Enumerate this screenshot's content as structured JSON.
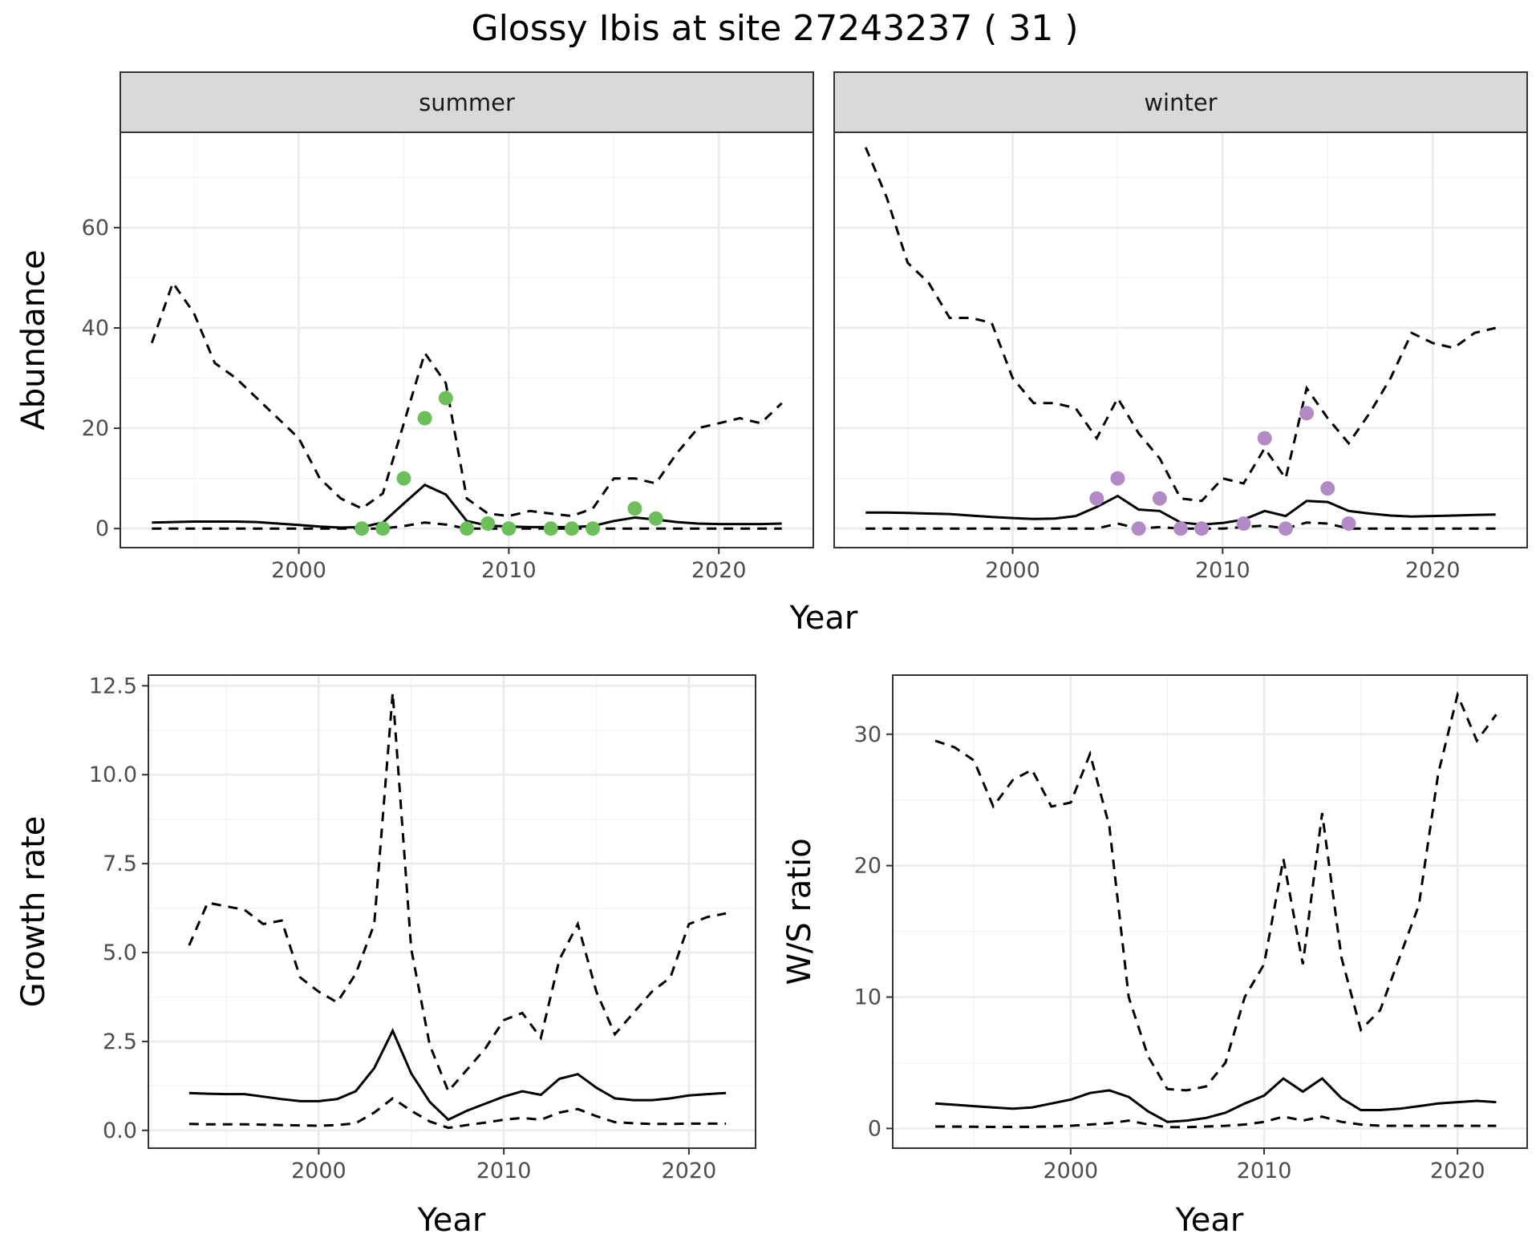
{
  "title": "Glossy Ibis at site 27243237 ( 31 )",
  "colors": {
    "summer_points": "#6dbf5b",
    "winter_points": "#b28bc6",
    "lines": "#000000"
  },
  "chart_data": [
    {
      "id": "abundance",
      "type": "line",
      "facets": [
        "summer",
        "winter"
      ],
      "xlabel": "Year",
      "ylabel": "Abundance",
      "xlim": [
        1991.5,
        2024.5
      ],
      "ylim": [
        -3.8,
        79
      ],
      "xticks": [
        "2000",
        "2010",
        "2020"
      ],
      "yticks": [
        "0",
        "20",
        "40",
        "60"
      ],
      "grid": true,
      "panels": [
        {
          "facet": "summer",
          "point_color": "#6dbf5b",
          "x": [
            1993,
            1994,
            1995,
            1996,
            1997,
            1998,
            1999,
            2000,
            2001,
            2002,
            2003,
            2004,
            2005,
            2006,
            2007,
            2008,
            2009,
            2010,
            2011,
            2012,
            2013,
            2014,
            2015,
            2016,
            2017,
            2018,
            2019,
            2020,
            2021,
            2022,
            2023
          ],
          "median": [
            1.2,
            1.3,
            1.4,
            1.4,
            1.4,
            1.3,
            1.0,
            0.7,
            0.4,
            0.2,
            0.3,
            1.2,
            5.0,
            8.7,
            6.8,
            1.5,
            0.6,
            0.4,
            0.3,
            0.3,
            0.3,
            0.5,
            1.5,
            2.2,
            1.8,
            1.3,
            1.0,
            0.9,
            0.9,
            0.9,
            1.0
          ],
          "upper": [
            37,
            49,
            43,
            33,
            30,
            26,
            22,
            18,
            10,
            6,
            4,
            7,
            21,
            35,
            29,
            6,
            3,
            2.5,
            3.5,
            3,
            2.5,
            4,
            10,
            10,
            9,
            15,
            20,
            21,
            22,
            21,
            25
          ],
          "lower": [
            0,
            0,
            0,
            0,
            0,
            0,
            0,
            0,
            0,
            0,
            0,
            0,
            0.5,
            1.2,
            0.8,
            0,
            0,
            0,
            0,
            0,
            0,
            0,
            0,
            0,
            0,
            0,
            0,
            0,
            0,
            0,
            0
          ],
          "points": [
            [
              2003,
              0
            ],
            [
              2004,
              0
            ],
            [
              2005,
              10
            ],
            [
              2006,
              22
            ],
            [
              2007,
              26
            ],
            [
              2008,
              0
            ],
            [
              2009,
              1
            ],
            [
              2010,
              0
            ],
            [
              2012,
              0
            ],
            [
              2013,
              0
            ],
            [
              2014,
              0
            ],
            [
              2016,
              4
            ],
            [
              2017,
              2
            ]
          ]
        },
        {
          "facet": "winter",
          "point_color": "#b28bc6",
          "x": [
            1993,
            1994,
            1995,
            1996,
            1997,
            1998,
            1999,
            2000,
            2001,
            2002,
            2003,
            2004,
            2005,
            2006,
            2007,
            2008,
            2009,
            2010,
            2011,
            2012,
            2013,
            2014,
            2015,
            2016,
            2017,
            2018,
            2019,
            2020,
            2021,
            2022,
            2023
          ],
          "median": [
            3.2,
            3.2,
            3.1,
            3.0,
            2.9,
            2.6,
            2.3,
            2.1,
            1.9,
            2.0,
            2.5,
            4.3,
            6.5,
            3.8,
            3.5,
            1.2,
            0.8,
            1.1,
            1.8,
            3.5,
            2.5,
            5.5,
            5.3,
            3.5,
            3.0,
            2.6,
            2.4,
            2.5,
            2.6,
            2.7,
            2.8
          ],
          "upper": [
            76,
            66,
            53,
            49,
            42,
            42,
            41,
            30,
            25,
            25,
            24,
            18,
            26,
            19,
            14,
            6,
            5.5,
            10,
            9,
            16,
            10,
            28,
            22,
            17,
            23,
            30,
            39,
            37,
            36,
            39,
            40
          ],
          "lower": [
            0,
            0,
            0,
            0,
            0,
            0,
            0,
            0,
            0,
            0,
            0,
            0,
            1.0,
            0,
            0.3,
            0,
            0,
            0,
            0.3,
            0.6,
            0,
            1.2,
            1.0,
            0,
            0,
            0,
            0,
            0,
            0,
            0,
            0
          ],
          "points": [
            [
              2004,
              6
            ],
            [
              2005,
              10
            ],
            [
              2006,
              0
            ],
            [
              2007,
              6
            ],
            [
              2008,
              0
            ],
            [
              2009,
              0
            ],
            [
              2011,
              1
            ],
            [
              2012,
              18
            ],
            [
              2013,
              0
            ],
            [
              2014,
              23
            ],
            [
              2015,
              8
            ],
            [
              2016,
              1
            ]
          ]
        }
      ]
    },
    {
      "id": "growth",
      "type": "line",
      "xlabel": "Year",
      "ylabel": "Growth rate",
      "xlim": [
        1990.8,
        2023.6
      ],
      "ylim": [
        -0.5,
        12.8
      ],
      "xticks": [
        "2000",
        "2010",
        "2020"
      ],
      "yticks": [
        "0.0",
        "2.5",
        "5.0",
        "7.5",
        "10.0",
        "12.5"
      ],
      "grid": true,
      "x": [
        1993,
        1994,
        1995,
        1996,
        1997,
        1998,
        1999,
        2000,
        2001,
        2002,
        2003,
        2004,
        2005,
        2006,
        2007,
        2008,
        2009,
        2010,
        2011,
        2012,
        2013,
        2014,
        2015,
        2016,
        2017,
        2018,
        2019,
        2020,
        2021,
        2022
      ],
      "median": [
        1.05,
        1.03,
        1.02,
        1.02,
        0.95,
        0.88,
        0.82,
        0.82,
        0.88,
        1.1,
        1.75,
        2.8,
        1.6,
        0.8,
        0.3,
        0.55,
        0.75,
        0.95,
        1.1,
        1.0,
        1.45,
        1.58,
        1.2,
        0.9,
        0.85,
        0.85,
        0.9,
        0.98,
        1.02,
        1.05
      ],
      "upper": [
        5.2,
        6.4,
        6.3,
        6.2,
        5.8,
        5.9,
        4.3,
        3.9,
        3.6,
        4.4,
        5.8,
        12.3,
        5.1,
        2.4,
        1.1,
        1.7,
        2.3,
        3.1,
        3.3,
        2.6,
        4.8,
        5.8,
        3.9,
        2.7,
        3.3,
        3.9,
        4.3,
        5.8,
        6.0,
        6.1
      ],
      "lower": [
        0.18,
        0.17,
        0.17,
        0.17,
        0.16,
        0.15,
        0.14,
        0.13,
        0.15,
        0.2,
        0.5,
        0.9,
        0.55,
        0.25,
        0.07,
        0.15,
        0.22,
        0.3,
        0.35,
        0.3,
        0.5,
        0.6,
        0.4,
        0.23,
        0.2,
        0.18,
        0.18,
        0.19,
        0.19,
        0.19
      ]
    },
    {
      "id": "ws_ratio",
      "type": "line",
      "xlabel": "Year",
      "ylabel": "W/S ratio",
      "xlim": [
        1990.8,
        2023.6
      ],
      "ylim": [
        -1.5,
        34.5
      ],
      "xticks": [
        "2000",
        "2010",
        "2020"
      ],
      "yticks": [
        "0",
        "10",
        "20",
        "30"
      ],
      "grid": true,
      "x": [
        1993,
        1994,
        1995,
        1996,
        1997,
        1998,
        1999,
        2000,
        2001,
        2002,
        2003,
        2004,
        2005,
        2006,
        2007,
        2008,
        2009,
        2010,
        2011,
        2012,
        2013,
        2014,
        2015,
        2016,
        2017,
        2018,
        2019,
        2020,
        2021,
        2022
      ],
      "median": [
        1.9,
        1.8,
        1.7,
        1.6,
        1.5,
        1.6,
        1.9,
        2.2,
        2.7,
        2.9,
        2.4,
        1.3,
        0.5,
        0.6,
        0.8,
        1.2,
        1.9,
        2.5,
        3.8,
        2.8,
        3.8,
        2.3,
        1.4,
        1.4,
        1.5,
        1.7,
        1.9,
        2.0,
        2.1,
        2.0
      ],
      "upper": [
        29.5,
        29,
        28,
        24.5,
        26.5,
        27.3,
        24.5,
        24.8,
        28.5,
        23,
        10,
        5.5,
        3,
        2.9,
        3.2,
        5,
        10,
        12.5,
        20.5,
        12.5,
        24,
        13,
        7.5,
        9,
        13,
        17,
        27,
        33,
        29.5,
        31.5
      ],
      "lower": [
        0.15,
        0.14,
        0.13,
        0.12,
        0.12,
        0.13,
        0.15,
        0.2,
        0.3,
        0.4,
        0.6,
        0.3,
        0.1,
        0.1,
        0.15,
        0.2,
        0.3,
        0.5,
        0.9,
        0.6,
        0.9,
        0.5,
        0.3,
        0.2,
        0.2,
        0.2,
        0.2,
        0.2,
        0.2,
        0.2
      ]
    }
  ]
}
